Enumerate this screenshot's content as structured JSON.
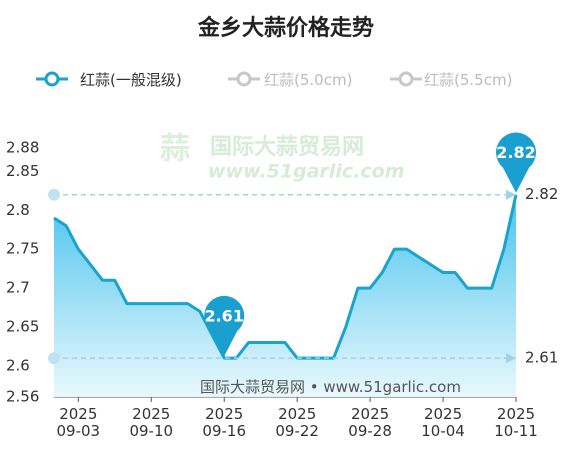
{
  "chart_data": {
    "type": "line",
    "title": "金乡大蒜价格走势",
    "categories": [
      null,
      null,
      "2025\n09-03",
      null,
      null,
      null,
      null,
      null,
      "2025\n09-10",
      null,
      null,
      null,
      null,
      null,
      "2025\n09-16",
      null,
      null,
      null,
      null,
      null,
      "2025\n09-22",
      null,
      null,
      null,
      null,
      null,
      "2025\n09-28",
      null,
      null,
      null,
      null,
      null,
      "2025\n10-04",
      null,
      null,
      null,
      null,
      null,
      "2025\n10-11"
    ],
    "series": [
      {
        "name": "红蒜(一般混级)",
        "color": "#1aa3cc",
        "values": [
          2.79,
          2.78,
          2.75,
          2.73,
          2.71,
          2.71,
          2.68,
          2.68,
          2.68,
          2.68,
          2.68,
          2.68,
          2.67,
          2.64,
          2.61,
          2.61,
          2.63,
          2.63,
          2.63,
          2.63,
          2.61,
          2.61,
          2.61,
          2.61,
          2.65,
          2.7,
          2.7,
          2.72,
          2.75,
          2.75,
          2.74,
          2.73,
          2.72,
          2.72,
          2.7,
          2.7,
          2.7,
          2.75,
          2.82
        ]
      },
      {
        "name": "红蒜(5.0cm)",
        "color": "#c8c8c8",
        "values": [
          null,
          null,
          null,
          null,
          null,
          null,
          null,
          null,
          null,
          null,
          null,
          null,
          null,
          null,
          null,
          null,
          null,
          null,
          null,
          null,
          null,
          null,
          null,
          null,
          null,
          null,
          null,
          null,
          null,
          null,
          null,
          null,
          null,
          null,
          null,
          null,
          null,
          null,
          null
        ]
      },
      {
        "name": "红蒜(5.5cm)",
        "color": "#c8c8c8",
        "values": [
          null,
          null,
          null,
          null,
          null,
          null,
          null,
          null,
          null,
          null,
          null,
          null,
          null,
          null,
          null,
          null,
          null,
          null,
          null,
          null,
          null,
          null,
          null,
          null,
          null,
          null,
          null,
          null,
          null,
          null,
          null,
          null,
          null,
          null,
          null,
          null,
          null,
          null,
          null
        ]
      }
    ],
    "ylim": [
      2.56,
      2.88
    ],
    "yticks": [
      2.56,
      2.6,
      2.65,
      2.7,
      2.75,
      2.8,
      2.85,
      2.88
    ],
    "max_index": 38,
    "min_index": 14
  },
  "watermark": {
    "logo_title": "国际大蒜贸易网",
    "logo_url": "www.51garlic.com",
    "footer": "国际大蒜贸易网 • www.51garlic.com"
  }
}
